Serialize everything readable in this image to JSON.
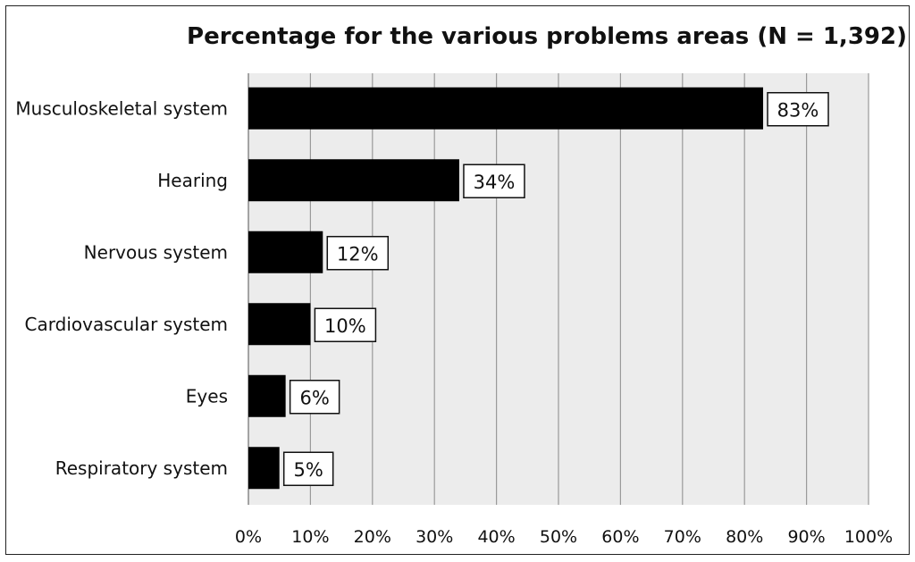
{
  "chart_data": {
    "type": "bar",
    "orientation": "horizontal",
    "title": "Percentage for the various problems areas (N = 1,392)",
    "categories": [
      "Musculoskeletal system",
      "Hearing",
      "Nervous system",
      "Cardiovascular system",
      "Eyes",
      "Respiratory system"
    ],
    "values": [
      83,
      34,
      12,
      10,
      6,
      5
    ],
    "data_labels": [
      "83%",
      "34%",
      "12%",
      "10%",
      "6%",
      "5%"
    ],
    "xlim": [
      0,
      100
    ],
    "x_ticks": [
      "0%",
      "10%",
      "20%",
      "30%",
      "40%",
      "50%",
      "60%",
      "70%",
      "80%",
      "90%",
      "100%"
    ],
    "grid": true,
    "legend": "none",
    "bar_color": "#000000",
    "plot_background": "#ececec",
    "gridline_color": "#9a9a9a"
  }
}
